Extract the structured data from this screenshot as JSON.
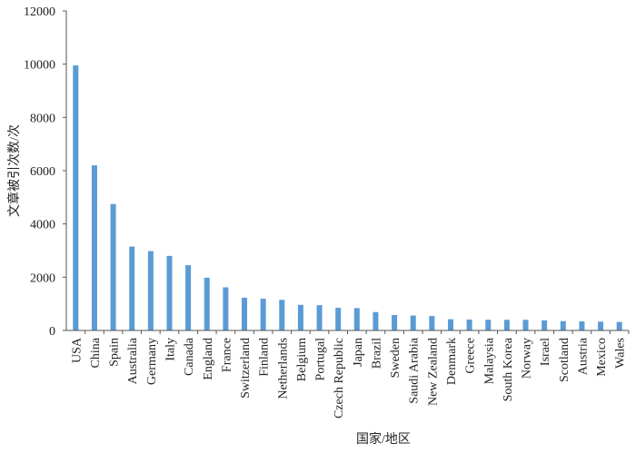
{
  "chart_data": {
    "type": "bar",
    "title": "",
    "xlabel": "国家/地区",
    "ylabel": "文章被引次数/次",
    "ylim": [
      0,
      12000
    ],
    "yticks": [
      0,
      2000,
      4000,
      6000,
      8000,
      10000,
      12000
    ],
    "grid": false,
    "legend": "none",
    "bar_color": "#5b9bd5",
    "categories": [
      "USA",
      "China",
      "Spain",
      "Australia",
      "Germany",
      "Italy",
      "Canada",
      "England",
      "France",
      "Switzerland",
      "Finland",
      "Netherlands",
      "Belgium",
      "Portugal",
      "Czech Republic",
      "Japan",
      "Brazil",
      "Sweden",
      "Saudi Arabia",
      "New Zealand",
      "Denmark",
      "Greece",
      "Malaysia",
      "South Korea",
      "Norway",
      "Israel",
      "Scotland",
      "Austria",
      "Mexico",
      "Wales"
    ],
    "values": [
      9950,
      6200,
      4750,
      3150,
      2980,
      2800,
      2450,
      1980,
      1620,
      1230,
      1190,
      1150,
      960,
      950,
      850,
      840,
      690,
      580,
      560,
      540,
      420,
      410,
      400,
      400,
      400,
      380,
      350,
      340,
      330,
      320
    ]
  }
}
